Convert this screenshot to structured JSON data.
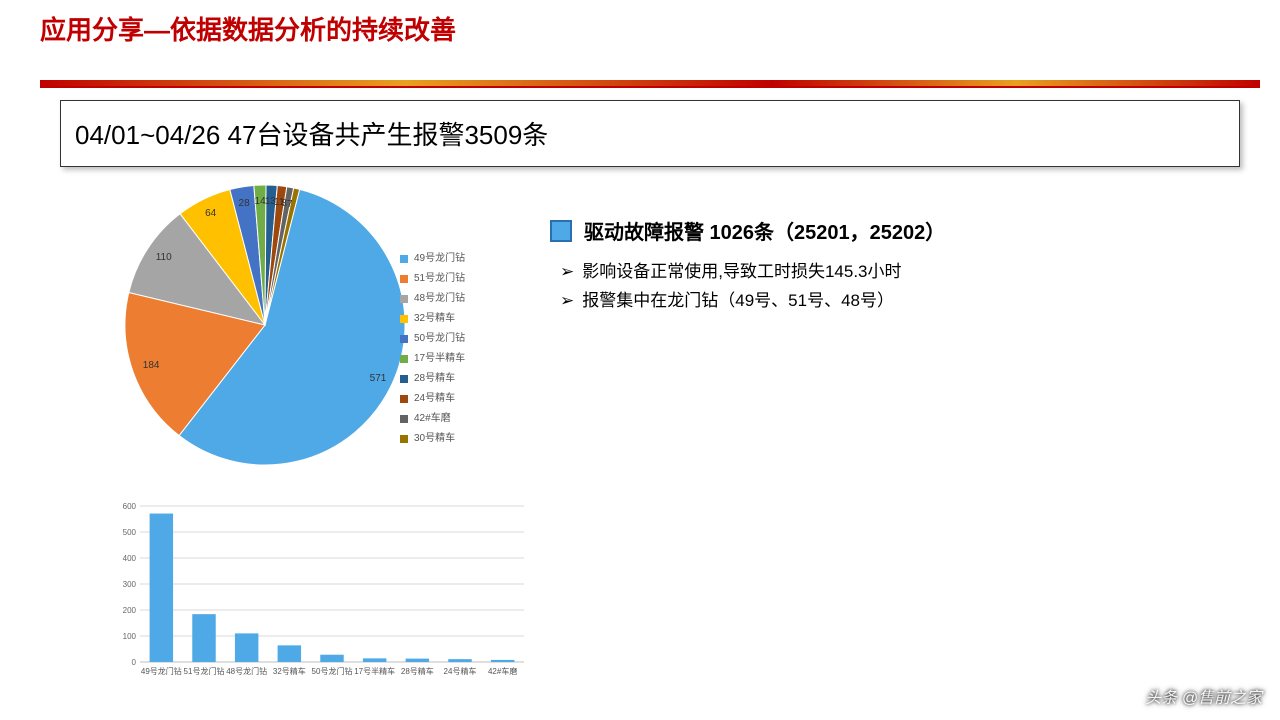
{
  "header": {
    "title": "应用分享—依据数据分析的持续改善",
    "title_color": "#c00000",
    "title_fontsize": 26
  },
  "subtitle": {
    "text": "04/01~04/26 47台设备共产生报警3509条",
    "fontsize": 26,
    "border_color": "#333333"
  },
  "pie_chart": {
    "type": "pie",
    "slices": [
      {
        "label": "49号龙门钻",
        "value": 571,
        "color": "#4ea9e6"
      },
      {
        "label": "51号龙门钻",
        "value": 184,
        "color": "#ed7d31"
      },
      {
        "label": "48号龙门钻",
        "value": 110,
        "color": "#a5a5a5"
      },
      {
        "label": "32号精车",
        "value": 64,
        "color": "#ffc000"
      },
      {
        "label": "50号龙门钻",
        "value": 28,
        "color": "#4472c4"
      },
      {
        "label": "17号半精车",
        "value": 14,
        "color": "#70ad47"
      },
      {
        "label": "28号精车",
        "value": 13,
        "color": "#255e91"
      },
      {
        "label": "24号精车",
        "value": 11,
        "color": "#9e480e"
      },
      {
        "label": "42#车磨",
        "value": 8,
        "color": "#636363"
      },
      {
        "label": "30号精车",
        "value": 7,
        "color": "#997300"
      }
    ],
    "label_fontsize": 10,
    "title": null
  },
  "bar_chart": {
    "type": "bar",
    "categories": [
      "49号龙门钻",
      "51号龙门钻",
      "48号龙门钻",
      "32号精车",
      "50号龙门钻",
      "17号半精车",
      "28号精车",
      "24号精车",
      "42#车磨"
    ],
    "values": [
      571,
      184,
      110,
      64,
      28,
      14,
      13,
      11,
      8
    ],
    "bar_color": "#4ea9e6",
    "ylim": [
      0,
      600
    ],
    "ytick_step": 100,
    "grid_color": "#d9d9d9",
    "axis_color": "#bfbfbf",
    "label_fontsize": 9,
    "tick_fontsize": 8
  },
  "key_point": {
    "swatch_color": "#4ea9e6",
    "swatch_border": "#2a6fb0",
    "text": "驱动故障报警 1026条（25201，25202）",
    "fontsize": 20
  },
  "bullets": [
    "影响设备正常使用,导致工时损失145.3小时",
    "报警集中在龙门钻（49号、51号、48号）"
  ],
  "watermark": "头条 @售前之家",
  "background_color": "#ffffff"
}
